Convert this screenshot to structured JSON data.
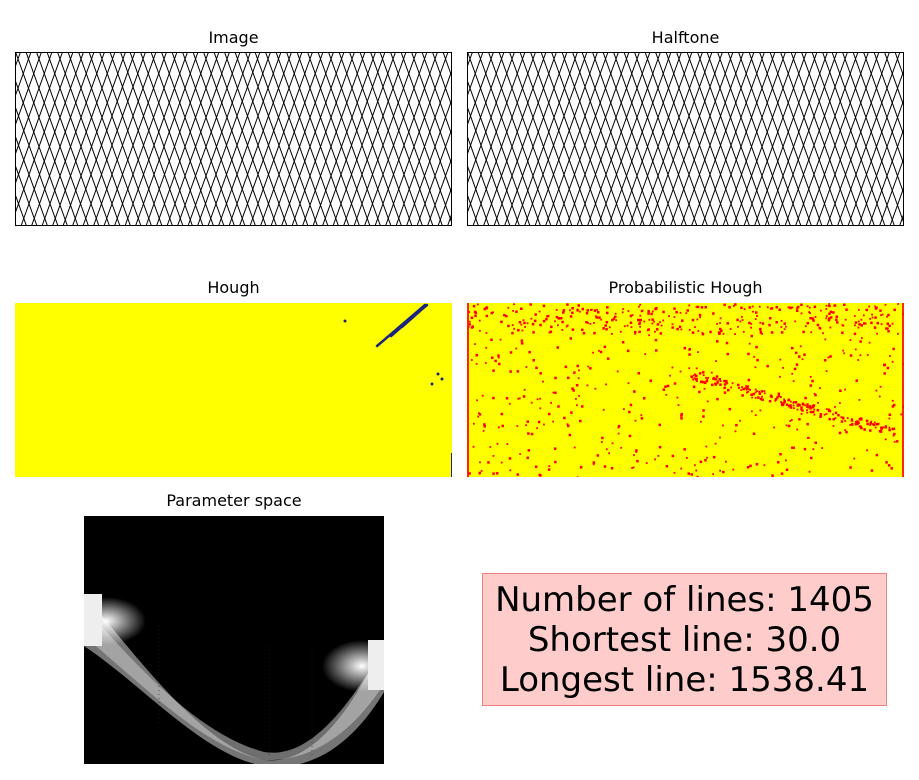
{
  "panels": {
    "image": {
      "title": "Image"
    },
    "halftone": {
      "title": "Halftone"
    },
    "hough": {
      "title": "Hough"
    },
    "prob_hough": {
      "title": "Probabilistic Hough"
    },
    "param_space": {
      "title": "Parameter space"
    }
  },
  "stats": {
    "lines_label": "Number of lines: 1405",
    "shortest_label": "Shortest line: 30.0",
    "longest_label": "Longest line: 1538.41"
  },
  "colors": {
    "hough_background": "#ffff00",
    "hough_detections": "#1a237e",
    "prob_background": "#ffff00",
    "prob_points": "#ff0000",
    "info_box_fill": "#ffcccc",
    "info_box_border": "#f08080"
  }
}
